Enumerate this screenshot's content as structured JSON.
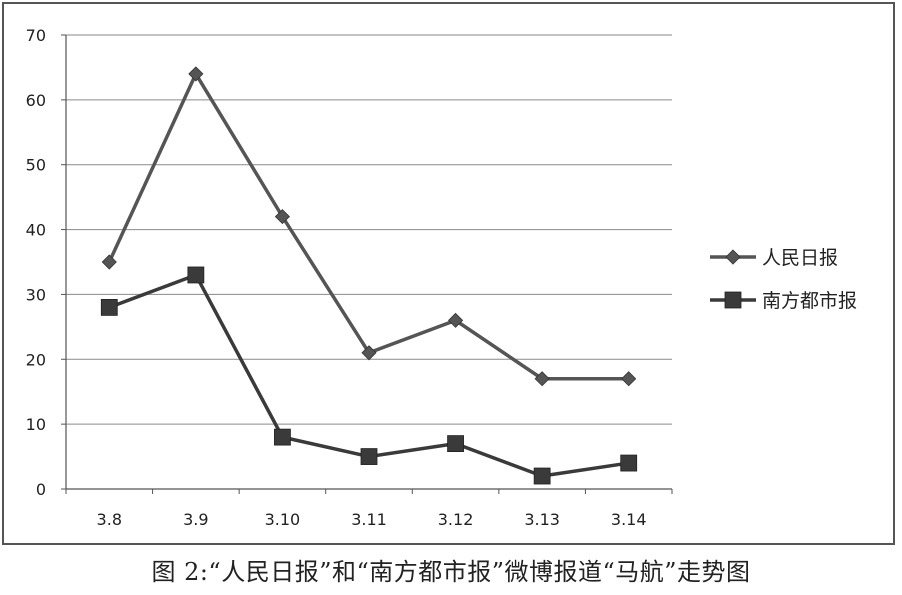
{
  "chart_data": {
    "type": "line",
    "categories": [
      "3.8",
      "3.9",
      "3.10",
      "3.11",
      "3.12",
      "3.13",
      "3.14"
    ],
    "series": [
      {
        "name": "人民日报",
        "values": [
          35,
          64,
          42,
          21,
          26,
          17,
          17
        ],
        "marker": "diamond",
        "color": "#555555"
      },
      {
        "name": "南方都市报",
        "values": [
          28,
          33,
          8,
          5,
          7,
          2,
          4
        ],
        "marker": "square",
        "color": "#3a3a3a"
      }
    ],
    "ylim": [
      0,
      70
    ],
    "yticks": [
      0,
      10,
      20,
      30,
      40,
      50,
      60,
      70
    ],
    "grid": true,
    "legend": "right"
  },
  "caption": "图 2:“人民日报”和“南方都市报”微博报道“马航”走势图"
}
